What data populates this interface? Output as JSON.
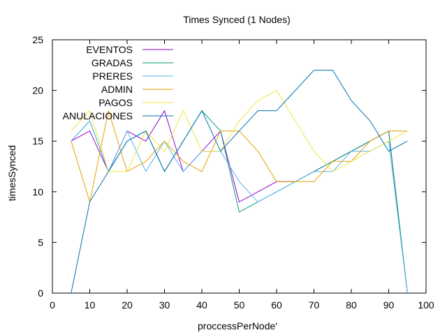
{
  "chart_data": {
    "type": "line",
    "title": "Times Synced (1 Nodes)",
    "xlabel": "proccessPerNode'",
    "ylabel": "timesSynced",
    "xlim": [
      0,
      100
    ],
    "ylim": [
      0,
      25
    ],
    "xticks": [
      0,
      10,
      20,
      30,
      40,
      50,
      60,
      70,
      80,
      90,
      100
    ],
    "yticks": [
      0,
      5,
      10,
      15,
      20,
      25
    ],
    "grid": false,
    "legend_position": "top-left",
    "x": [
      5,
      10,
      15,
      20,
      25,
      30,
      35,
      40,
      45,
      50,
      55,
      60,
      65,
      70,
      75,
      80,
      85,
      90,
      95
    ],
    "series": [
      {
        "name": "EVENTOS",
        "color": "#9400d3",
        "values": [
          15,
          16,
          12,
          16,
          15,
          18,
          12,
          14,
          16,
          9,
          10,
          11,
          11,
          12,
          13,
          14,
          15,
          16,
          0
        ]
      },
      {
        "name": "GRADAS",
        "color": "#009e73",
        "values": [
          15,
          17,
          12,
          15,
          16,
          12,
          15,
          18,
          16,
          8,
          9,
          10,
          11,
          12,
          13,
          14,
          15,
          16,
          0
        ]
      },
      {
        "name": "PRERES",
        "color": "#56b4e9",
        "values": [
          15,
          17,
          12,
          16,
          12,
          15,
          12,
          14,
          14,
          11,
          9,
          10,
          11,
          12,
          12,
          14,
          14,
          15,
          0
        ]
      },
      {
        "name": "ADMIN",
        "color": "#e69f00",
        "values": [
          15,
          9,
          18,
          12,
          13,
          15,
          13,
          12,
          16,
          16,
          14,
          11,
          11,
          11,
          13,
          13,
          15,
          16,
          16
        ]
      },
      {
        "name": "PAGOS",
        "color": "#f0e442",
        "values": [
          16,
          18,
          12,
          12,
          16,
          14,
          18,
          14,
          14,
          17,
          19,
          20,
          17,
          14,
          12,
          13,
          14,
          15,
          16
        ]
      },
      {
        "name": "ANULACIONES",
        "color": "#0072b2",
        "values": [
          0,
          9,
          12,
          15,
          16,
          12,
          15,
          18,
          14,
          16,
          18,
          18,
          20,
          22,
          22,
          19,
          17,
          14,
          15
        ]
      }
    ]
  }
}
